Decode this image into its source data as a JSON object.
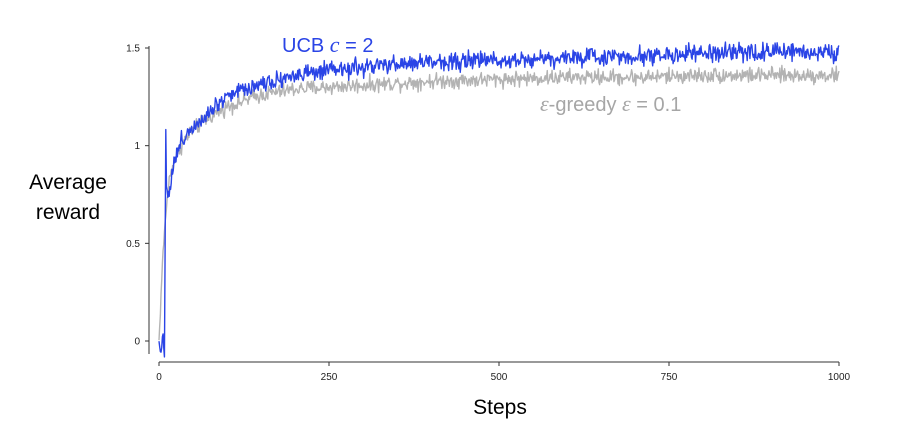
{
  "chart_data": {
    "type": "line",
    "title": "",
    "xlabel": "Steps",
    "ylabel_lines": [
      "Average",
      "reward"
    ],
    "xlim": [
      0,
      1000
    ],
    "ylim": [
      -0.1,
      1.55
    ],
    "x_ticks": [
      0,
      250,
      500,
      750,
      1000
    ],
    "x_tick_labels": [
      "0",
      "250",
      "500",
      "750",
      "1000"
    ],
    "y_ticks": [
      0,
      0.5,
      1,
      1.5
    ],
    "y_tick_labels": [
      "0",
      "0.5",
      "1",
      "1.5"
    ],
    "grid": false,
    "series": [
      {
        "name": "ε-greedy ε = 0.1",
        "label_parts": [
          "ε",
          "-greedy  ",
          "ε",
          " = 0.1"
        ],
        "color": "#b3b3b3",
        "noise": 0.03,
        "points": [
          [
            0,
            0.0
          ],
          [
            2,
            0.15
          ],
          [
            5,
            0.4
          ],
          [
            8,
            0.55
          ],
          [
            10,
            0.65
          ],
          [
            15,
            0.82
          ],
          [
            20,
            0.9
          ],
          [
            30,
            0.98
          ],
          [
            40,
            1.04
          ],
          [
            50,
            1.08
          ],
          [
            75,
            1.15
          ],
          [
            100,
            1.2
          ],
          [
            150,
            1.26
          ],
          [
            200,
            1.29
          ],
          [
            250,
            1.3
          ],
          [
            300,
            1.31
          ],
          [
            400,
            1.33
          ],
          [
            500,
            1.34
          ],
          [
            600,
            1.35
          ],
          [
            700,
            1.35
          ],
          [
            800,
            1.36
          ],
          [
            900,
            1.36
          ],
          [
            1000,
            1.36
          ]
        ]
      },
      {
        "name": "UCB c = 2",
        "label_parts": [
          "UCB  ",
          "c",
          " = 2"
        ],
        "color": "#2a44e6",
        "noise": 0.035,
        "points": [
          [
            0,
            0.0
          ],
          [
            3,
            -0.05
          ],
          [
            6,
            0.02
          ],
          [
            8,
            -0.07
          ],
          [
            10,
            1.08
          ],
          [
            11,
            0.8
          ],
          [
            15,
            0.75
          ],
          [
            20,
            0.88
          ],
          [
            30,
            1.0
          ],
          [
            40,
            1.06
          ],
          [
            50,
            1.1
          ],
          [
            75,
            1.18
          ],
          [
            100,
            1.26
          ],
          [
            150,
            1.32
          ],
          [
            200,
            1.36
          ],
          [
            250,
            1.38
          ],
          [
            300,
            1.4
          ],
          [
            400,
            1.43
          ],
          [
            500,
            1.44
          ],
          [
            600,
            1.45
          ],
          [
            700,
            1.46
          ],
          [
            800,
            1.47
          ],
          [
            900,
            1.48
          ],
          [
            1000,
            1.48
          ]
        ]
      }
    ]
  }
}
